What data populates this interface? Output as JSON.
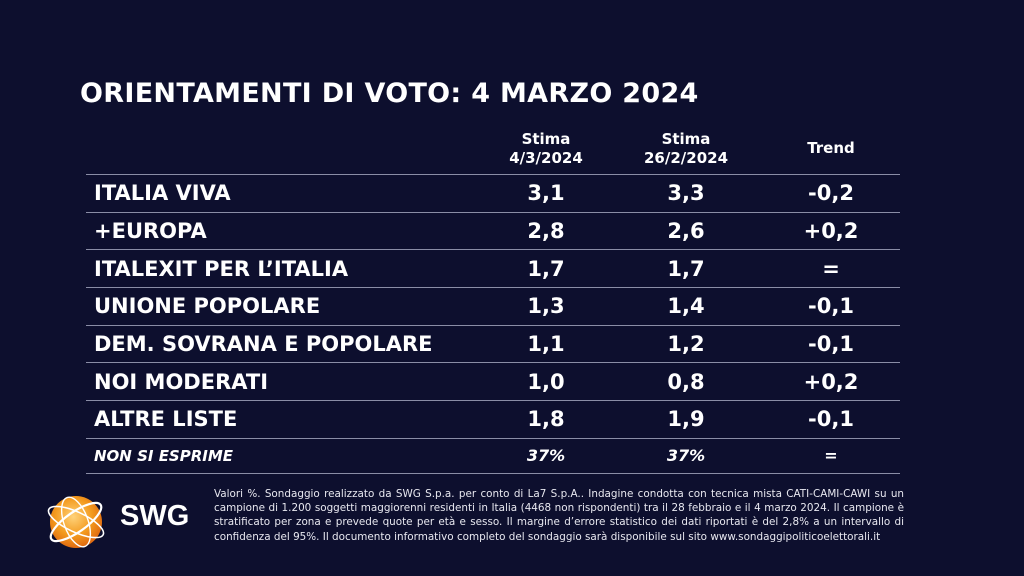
{
  "title": "ORIENTAMENTI DI VOTO: 4 MARZO 2024",
  "chart_data": {
    "type": "table",
    "columns": [
      {
        "line1": "Stima",
        "line2": "4/3/2024"
      },
      {
        "line1": "Stima",
        "line2": "26/2/2024"
      },
      {
        "line1": "Trend",
        "line2": ""
      }
    ],
    "rows": [
      {
        "party": "ITALIA VIVA",
        "v1": "3,1",
        "v2": "3,3",
        "trend": "-0,2"
      },
      {
        "party": "+EUROPA",
        "v1": "2,8",
        "v2": "2,6",
        "trend": "+0,2"
      },
      {
        "party": "ITALEXIT PER L’ITALIA",
        "v1": "1,7",
        "v2": "1,7",
        "trend": "="
      },
      {
        "party": "UNIONE POPOLARE",
        "v1": "1,3",
        "v2": "1,4",
        "trend": "-0,1"
      },
      {
        "party": "DEM. SOVRANA E POPOLARE",
        "v1": "1,1",
        "v2": "1,2",
        "trend": "-0,1"
      },
      {
        "party": "NOI MODERATI",
        "v1": "1,0",
        "v2": "0,8",
        "trend": "+0,2"
      },
      {
        "party": "ALTRE LISTE",
        "v1": "1,8",
        "v2": "1,9",
        "trend": "-0,1"
      },
      {
        "party": "NON SI ESPRIME",
        "v1": "37%",
        "v2": "37%",
        "trend": "="
      }
    ]
  },
  "logo_text": "SWG",
  "footnote": "Valori %. Sondaggio realizzato da SWG S.p.a. per conto di La7 S.p.A.. Indagine condotta con tecnica mista CATI-CAMI-CAWI su un campione di 1.200 soggetti maggiorenni residenti in Italia (4468 non rispondenti) tra il 28 febbraio e il 4 marzo 2024. Il campione è stratificato per zona e prevede quote per età e sesso. Il margine d’errore statistico dei dati riportati è del 2,8% a un intervallo di confidenza del 95%. Il documento informativo completo del sondaggio sarà disponibile sul sito www.sondaggipoliticoelettorali.it"
}
